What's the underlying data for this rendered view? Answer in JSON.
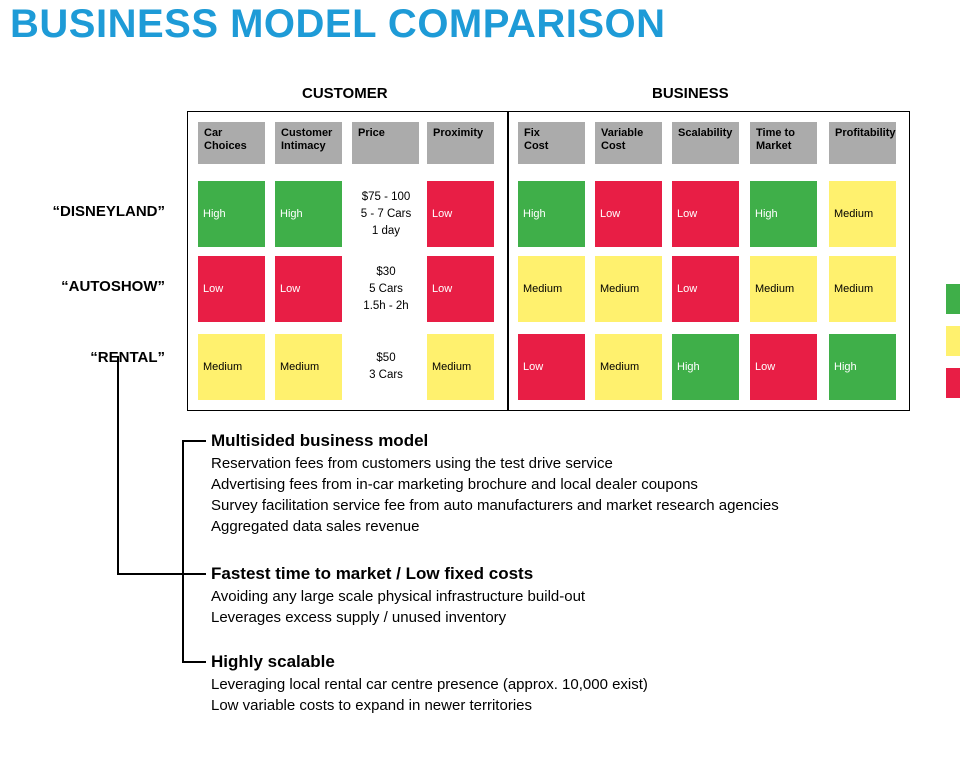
{
  "title": "BUSINESS MODEL COMPARISON",
  "groups": {
    "customer": "CUSTOMER",
    "business": "BUSINESS"
  },
  "columns": {
    "car_choices": [
      "Car",
      "Choices"
    ],
    "customer_intimacy": [
      "Customer",
      "Intimacy"
    ],
    "price": [
      "Price"
    ],
    "proximity": [
      "Proximity"
    ],
    "fix_cost": [
      "Fix",
      "Cost"
    ],
    "variable_cost": [
      "Variable",
      "Cost"
    ],
    "scalability": [
      "Scalability"
    ],
    "time_to_market": [
      "Time to",
      "Market"
    ],
    "profitability": [
      "Profitability"
    ]
  },
  "rows": [
    {
      "label": "“DISNEYLAND”",
      "car_choices": "High",
      "customer_intimacy": "High",
      "price": [
        "$75 - 100",
        "5 - 7 Cars",
        "1 day"
      ],
      "proximity": "Low",
      "fix_cost": "High",
      "variable_cost": "Low",
      "scalability": "Low",
      "time_to_market": "High",
      "profitability": "Medium"
    },
    {
      "label": "“AUTOSHOW”",
      "car_choices": "Low",
      "customer_intimacy": "Low",
      "price": [
        "$30",
        "5 Cars",
        "1.5h - 2h"
      ],
      "proximity": "Low",
      "fix_cost": "Medium",
      "variable_cost": "Medium",
      "scalability": "Low",
      "time_to_market": "Medium",
      "profitability": "Medium"
    },
    {
      "label": "“RENTAL”",
      "car_choices": "Medium",
      "customer_intimacy": "Medium",
      "price": [
        "$50",
        "3 Cars"
      ],
      "proximity": "Medium",
      "fix_cost": "Low",
      "variable_cost": "Medium",
      "scalability": "High",
      "time_to_market": "Low",
      "profitability": "High"
    }
  ],
  "colors": {
    "high": "#3FAF49",
    "medium": "#FFF16E",
    "low": "#E81E45",
    "header": "#ABABAB",
    "title": "#1E9BD7"
  },
  "sections": [
    {
      "heading": "Multisided business model",
      "lines": [
        "Reservation fees from customers using the test drive service",
        "Advertising fees from in-car marketing brochure and local dealer coupons",
        "Survey facilitation service fee from auto manufacturers and market research agencies",
        "Aggregated data sales revenue"
      ]
    },
    {
      "heading": "Fastest time to market / Low fixed costs",
      "lines": [
        "Avoiding any large scale physical infrastructure build-out",
        "Leverages excess supply / unused inventory"
      ]
    },
    {
      "heading": "Highly scalable",
      "lines": [
        "Leveraging local rental car centre presence (approx. 10,000 exist)",
        "Low variable costs to expand in newer territories"
      ]
    }
  ]
}
